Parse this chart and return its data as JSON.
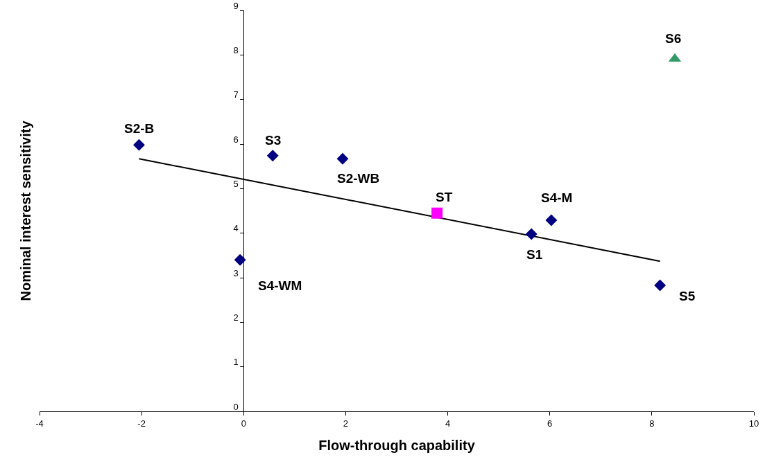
{
  "chart_data": {
    "type": "scatter",
    "xlabel": "Flow-through capability",
    "ylabel": "Nominal interest sensitivity",
    "xlim": [
      -4,
      10
    ],
    "xticks": [
      -4,
      -2,
      0,
      2,
      4,
      6,
      8,
      10
    ],
    "ylim": [
      0,
      9
    ],
    "yticks": [
      0,
      1,
      2,
      3,
      4,
      5,
      6,
      7,
      8,
      9
    ],
    "grid": false,
    "series": [
      {
        "color": "#000080",
        "marker": "diamond",
        "x": [
          -2.05,
          0.57,
          1.94,
          -0.07,
          5.64,
          6.03,
          8.16
        ],
        "values": [
          5.98,
          5.74,
          5.67,
          3.4,
          3.98,
          4.29,
          2.83
        ]
      },
      {
        "color": "#ff00ff",
        "marker": "square",
        "x": [
          3.79
        ],
        "values": [
          4.45
        ]
      },
      {
        "color": "#339966",
        "marker": "triangle",
        "x": [
          8.45
        ],
        "values": [
          7.91
        ]
      },
      {
        "type": "line",
        "color": "#000000",
        "marker": "none",
        "line_style": "solid",
        "x": [
          -2.05,
          8.16
        ],
        "values": [
          5.67,
          3.37
        ]
      }
    ],
    "annotations": [
      {
        "text": "S2-B",
        "x": -2.05,
        "y": 5.98
      },
      {
        "text": "S3",
        "x": 0.57,
        "y": 5.74
      },
      {
        "text": "S2-WB",
        "x": 1.94,
        "y": 5.67
      },
      {
        "text": "S4-WM",
        "x": -0.07,
        "y": 3.4
      },
      {
        "text": "ST",
        "x": 3.79,
        "y": 4.45
      },
      {
        "text": "S1",
        "x": 5.64,
        "y": 3.98
      },
      {
        "text": "S4-M",
        "x": 6.03,
        "y": 4.29
      },
      {
        "text": "S5",
        "x": 8.16,
        "y": 2.83
      },
      {
        "text": "S6",
        "x": 8.45,
        "y": 7.91
      }
    ]
  }
}
